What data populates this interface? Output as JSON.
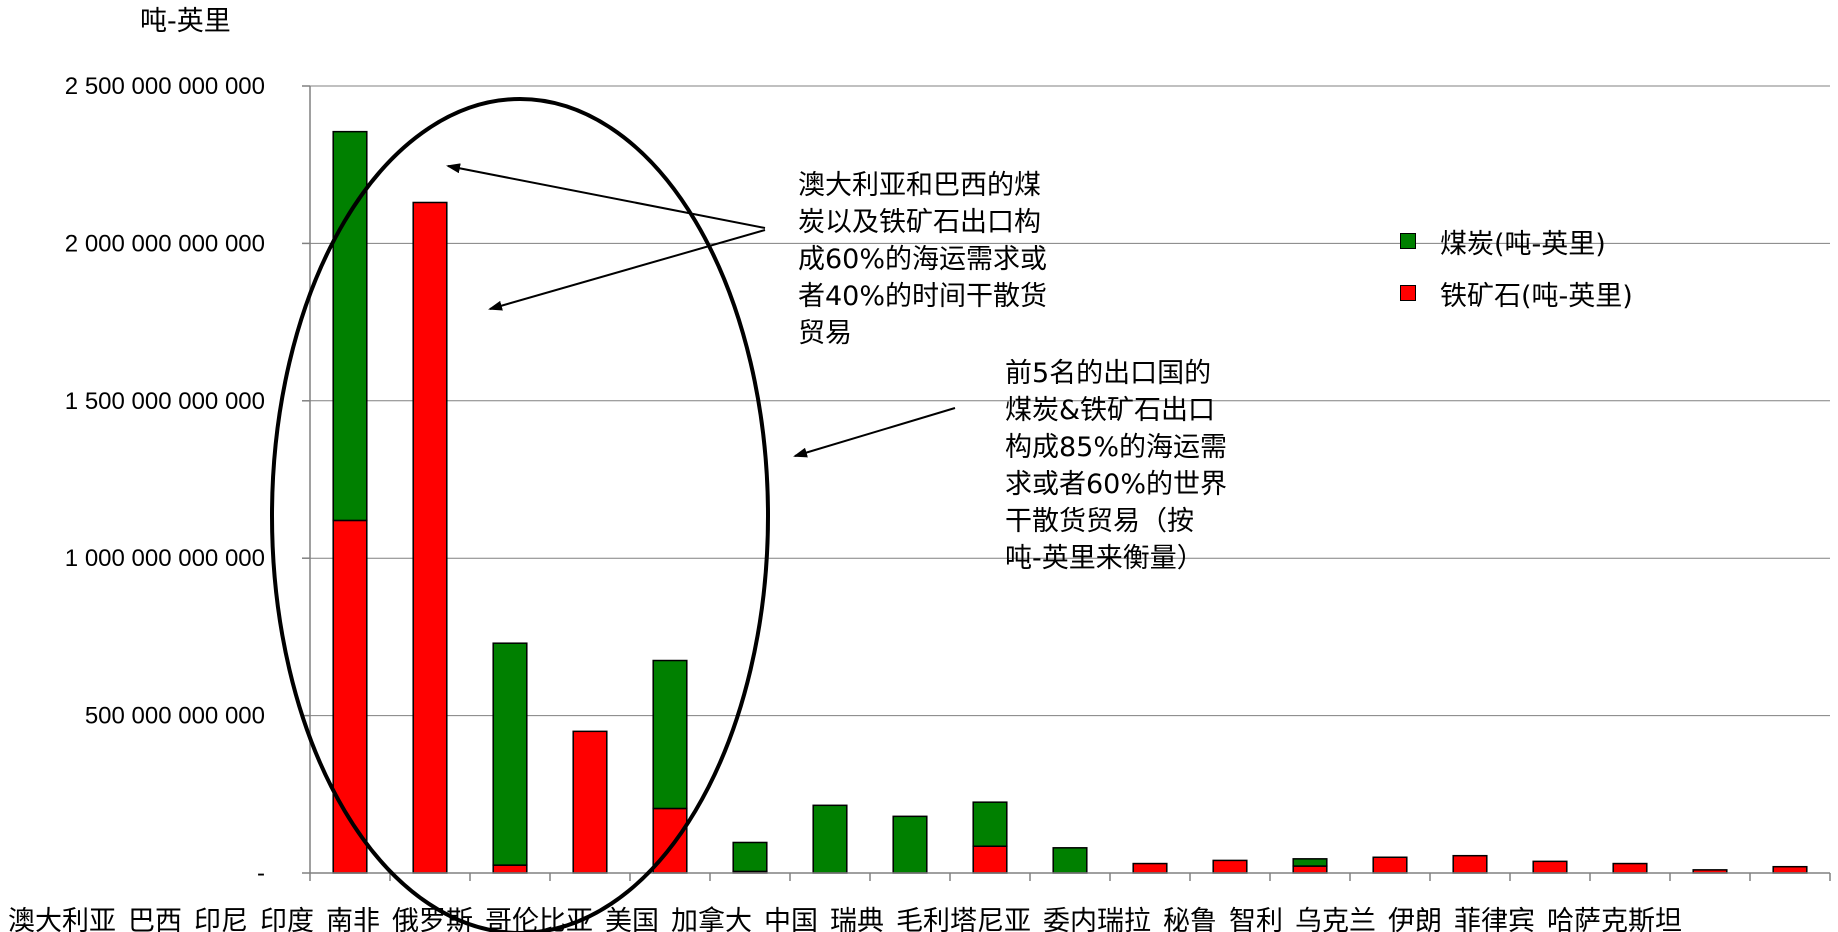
{
  "chart_data": {
    "type": "bar",
    "stacked": true,
    "unit_label": "吨-英里",
    "categories": [
      "澳大利亚",
      "巴西",
      "印尼",
      "印度",
      "南非",
      "俄罗斯",
      "哥伦比亚",
      "美国",
      "加拿大",
      "中国",
      "瑞典",
      "毛利塔尼亚",
      "委内瑞拉",
      "秘鲁",
      "智利",
      "乌克兰",
      "伊朗",
      "菲律宾",
      "哈萨克斯坦"
    ],
    "x_tick_labels": [
      "澳大利亚",
      "巴西",
      "印尼",
      "印度",
      "南非",
      "俄罗斯",
      "哥伦比亚",
      "美国",
      "加拿大",
      "中国",
      "瑞典",
      "毛利塔尼亚",
      "委内瑞拉",
      "秘鲁",
      "智利",
      "乌克兰",
      "伊朗",
      "菲律宾",
      "哈萨克斯坦"
    ],
    "series": [
      {
        "name": "铁矿石(吨-英里)",
        "color": "#ff0000",
        "values": [
          1120000000000,
          2130000000000,
          25000000000,
          450000000000,
          205000000000,
          5000000000,
          0,
          0,
          85000000000,
          0,
          30000000000,
          40000000000,
          22000000000,
          50000000000,
          55000000000,
          37000000000,
          30000000000,
          10000000000,
          20000000000
        ]
      },
      {
        "name": "煤炭(吨-英里)",
        "color": "#008000",
        "values": [
          1235000000000,
          0,
          705000000000,
          0,
          470000000000,
          92000000000,
          215000000000,
          180000000000,
          140000000000,
          80000000000,
          0,
          0,
          23000000000,
          0,
          0,
          0,
          0,
          0,
          0
        ]
      }
    ],
    "ylim": [
      0,
      2500000000000
    ],
    "y_ticks": [
      0,
      500000000000,
      1000000000000,
      1500000000000,
      2000000000000,
      2500000000000
    ],
    "y_tick_labels": [
      "-",
      "500 000 000 000",
      "1 000 000 000 000",
      "1 500 000 000 000",
      "2 000 000 000 000",
      "2 500 000 000 000"
    ],
    "grid": true,
    "legend": {
      "position": "right",
      "entries": [
        {
          "label": "煤炭(吨-英里)",
          "color": "#008000"
        },
        {
          "label": "铁矿石(吨-英里)",
          "color": "#ff0000"
        }
      ]
    },
    "annotations": [
      {
        "id": "note1",
        "text": "澳大利亚和巴西的煤\n炭以及铁矿石出口构\n成60%的海运需求或\n者40%的时间干散货\n贸易"
      },
      {
        "id": "note2",
        "text": "前5名的出口国的\n煤炭&铁矿石出口\n构成85%的海运需\n求或者60%的世界\n干散货贸易（按\n吨-英里来衡量）"
      }
    ],
    "highlight": "ellipse around first five bars"
  }
}
